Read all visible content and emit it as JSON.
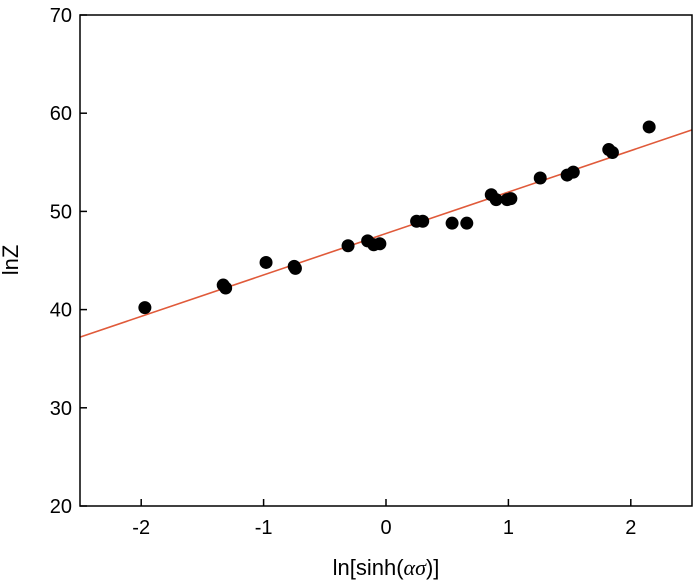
{
  "chart_data": {
    "type": "scatter",
    "title": "",
    "xlabel_prefix": "ln[sinh(",
    "xlabel_greek": "ασ",
    "xlabel_suffix": ")]",
    "ylabel": "lnZ",
    "xlim": [
      -2.5,
      2.5
    ],
    "ylim": [
      20,
      70
    ],
    "xticks": [
      -2,
      -1,
      0,
      1,
      2
    ],
    "xtick_labels": [
      "-2",
      "-1",
      "0",
      "1",
      "2"
    ],
    "yticks": [
      20,
      30,
      40,
      50,
      60,
      70
    ],
    "ytick_labels": [
      "20",
      "30",
      "40",
      "50",
      "60",
      "70"
    ],
    "grid": false,
    "legend": "none",
    "series": [
      {
        "type": "scatter",
        "color": "#000000",
        "points": [
          [
            -1.97,
            40.2
          ],
          [
            -1.33,
            42.5
          ],
          [
            -1.31,
            42.2
          ],
          [
            -0.98,
            44.8
          ],
          [
            -0.75,
            44.4
          ],
          [
            -0.74,
            44.2
          ],
          [
            -0.31,
            46.5
          ],
          [
            -0.15,
            47.0
          ],
          [
            -0.1,
            46.6
          ],
          [
            -0.05,
            46.7
          ],
          [
            0.25,
            49.0
          ],
          [
            0.3,
            49.0
          ],
          [
            0.54,
            48.8
          ],
          [
            0.66,
            48.8
          ],
          [
            0.86,
            51.7
          ],
          [
            0.9,
            51.2
          ],
          [
            0.99,
            51.2
          ],
          [
            1.02,
            51.3
          ],
          [
            1.26,
            53.4
          ],
          [
            1.48,
            53.7
          ],
          [
            1.53,
            54.0
          ],
          [
            1.82,
            56.3
          ],
          [
            1.85,
            56.0
          ],
          [
            2.15,
            58.6
          ]
        ]
      },
      {
        "type": "line",
        "color": "#e05a3a",
        "x": [
          -2.5,
          2.5
        ],
        "y": [
          37.2,
          58.3
        ]
      }
    ]
  }
}
